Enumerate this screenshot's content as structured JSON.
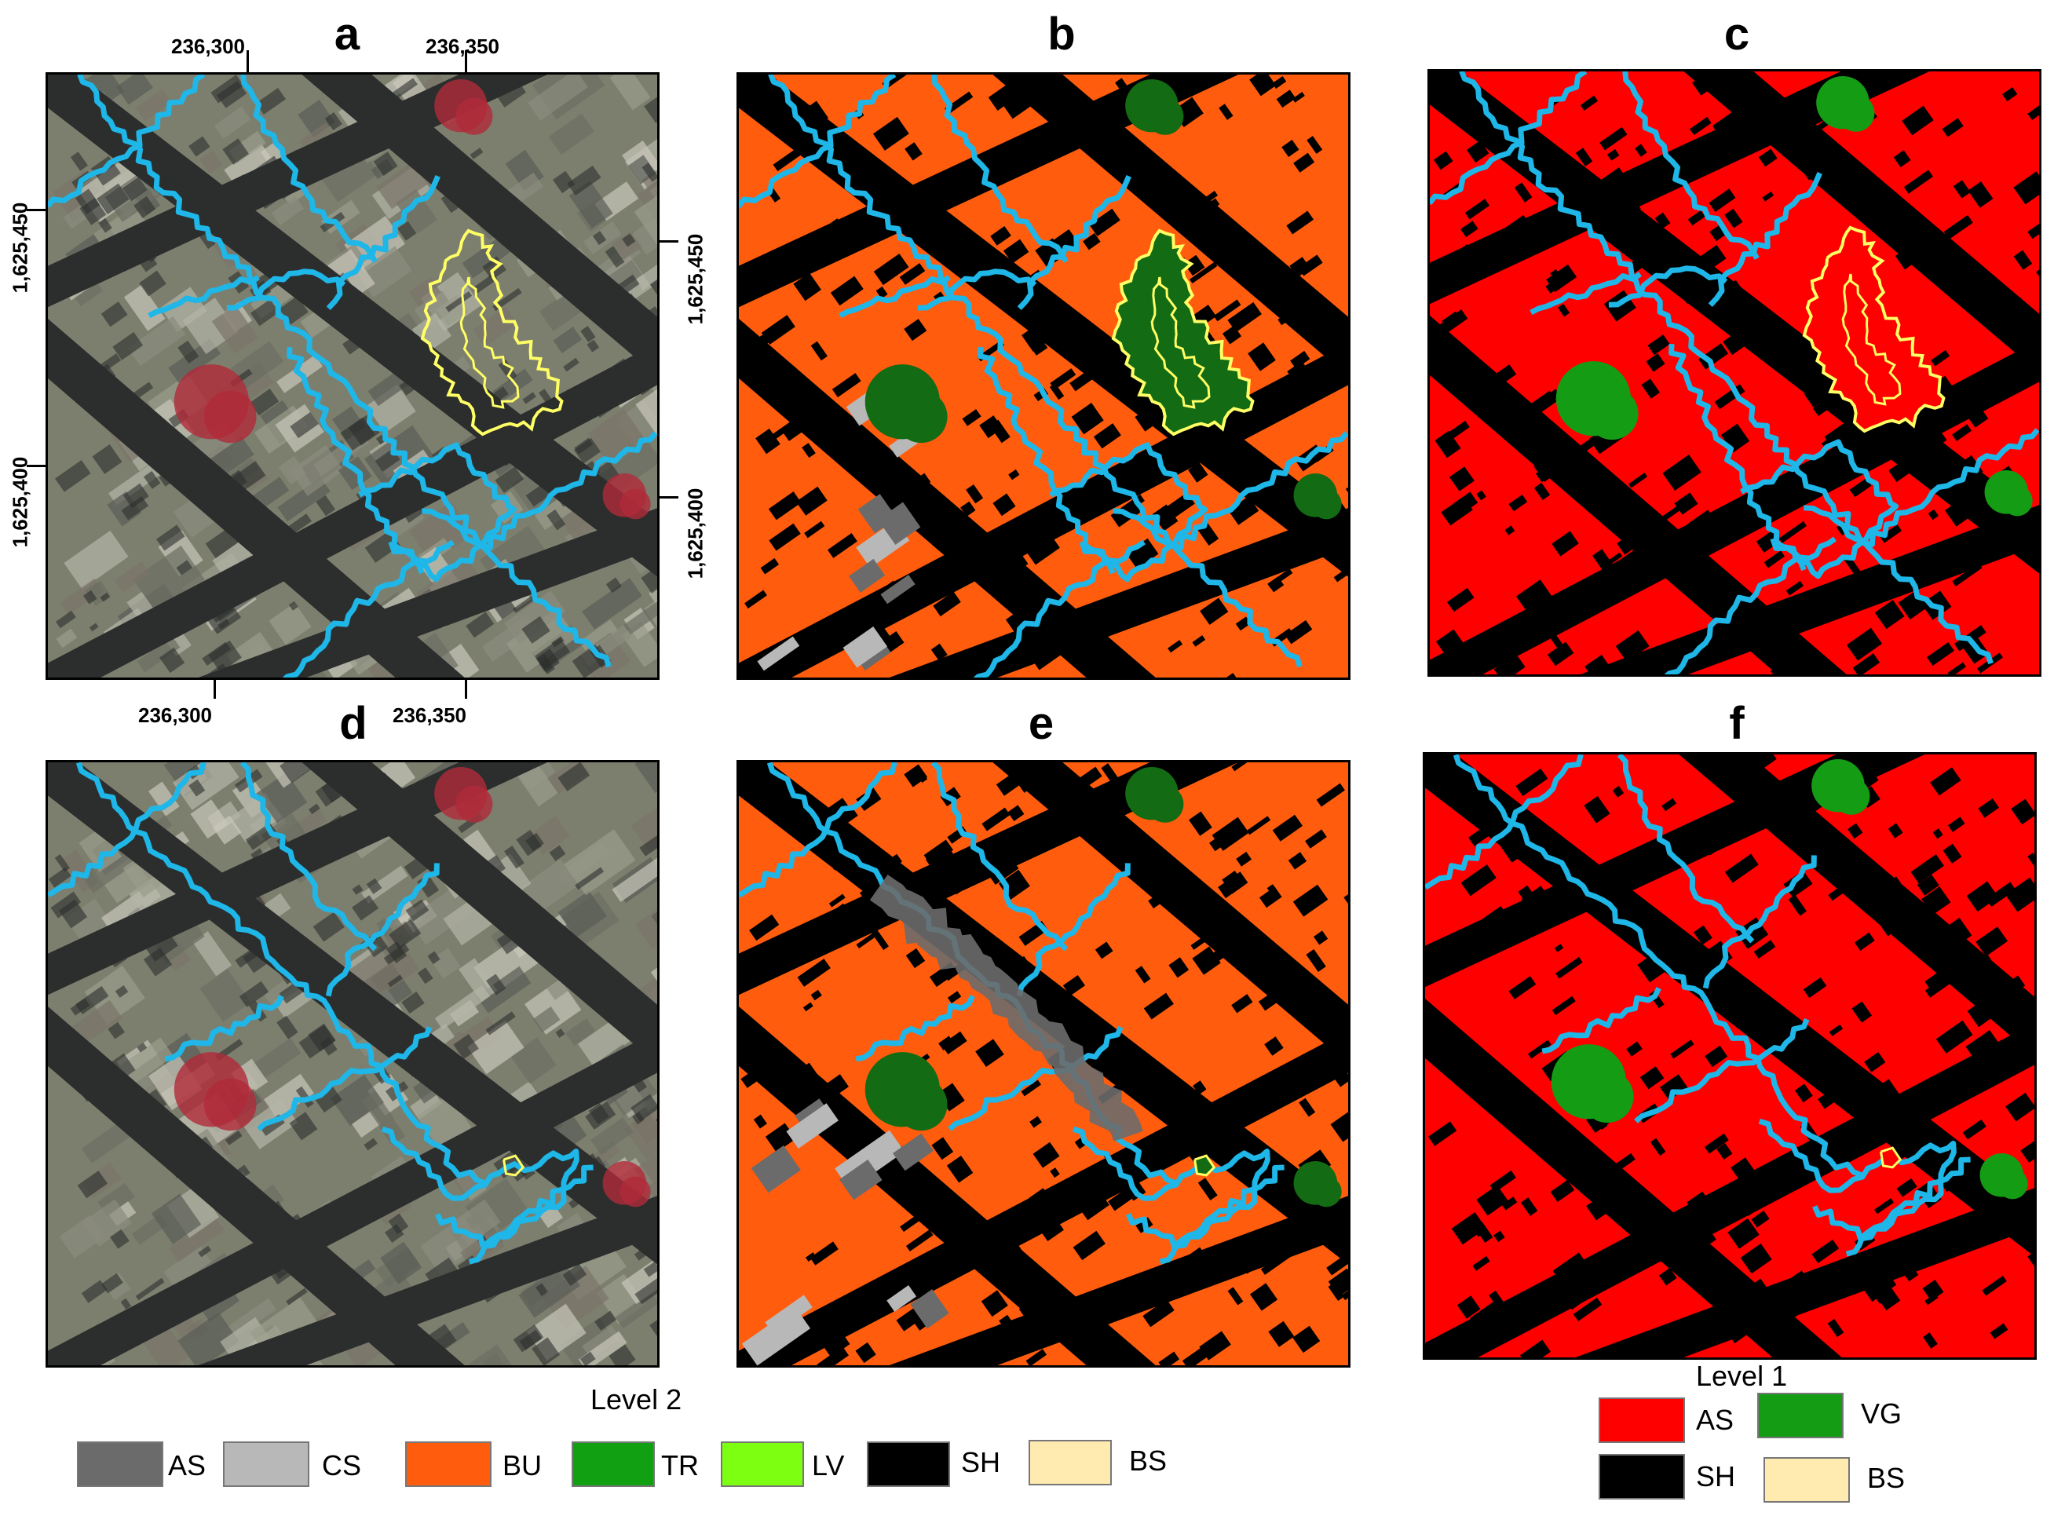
{
  "panels": [
    {
      "id": "a",
      "type": "imagery",
      "streets": "a"
    },
    {
      "id": "b",
      "type": "level2",
      "streets": "a"
    },
    {
      "id": "c",
      "type": "level1",
      "streets": "a"
    },
    {
      "id": "d",
      "type": "imagery",
      "streets": "d"
    },
    {
      "id": "e",
      "type": "level2",
      "streets": "d"
    },
    {
      "id": "f",
      "type": "level1",
      "streets": "d"
    }
  ],
  "axes": {
    "top_x": [
      "236,300",
      "236,350"
    ],
    "bottom_x": [
      "236,300",
      "236,350"
    ],
    "left_y": [
      "1,625,450",
      "1,625,400"
    ],
    "right_y": [
      "1,625,450",
      "1,625,400"
    ]
  },
  "legend_level2": {
    "title": "Level 2",
    "items": [
      {
        "code": "AS",
        "color": "#6b6b6b"
      },
      {
        "code": "CS",
        "color": "#b8b8b8"
      },
      {
        "code": "BU",
        "color": "#ff5c0e"
      },
      {
        "code": "TR",
        "color": "#11a011"
      },
      {
        "code": "LV",
        "color": "#7cff10"
      },
      {
        "code": "SH",
        "color": "#000000"
      },
      {
        "code": "BS",
        "color": "#ffebb0"
      }
    ]
  },
  "legend_level1": {
    "title": "Level 1",
    "items": [
      {
        "code": "AS",
        "color": "#ff0000"
      },
      {
        "code": "VG",
        "color": "#149c14"
      },
      {
        "code": "SH",
        "color": "#000000"
      },
      {
        "code": "BS",
        "color": "#ffebb0"
      }
    ]
  },
  "colors": {
    "street_outline": "#1fb6e8",
    "selected_outline": "#ffff66",
    "dark_green": "#136b13",
    "imagery_base": "#7d7f6e",
    "imagery_shadow": "#2b2e2d",
    "imagery_veg": "#b02a3a"
  }
}
